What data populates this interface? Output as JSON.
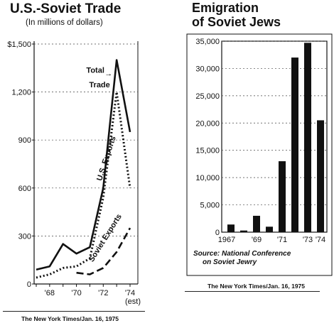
{
  "chart_data": [
    {
      "type": "line",
      "title": "U.S.-Soviet Trade",
      "subtitle": "(In millions of dollars)",
      "x": [
        1967,
        1968,
        1969,
        1970,
        1971,
        1972,
        1973,
        1974
      ],
      "x_tick_labels": [
        "'68",
        "'70",
        "'72",
        "'74"
      ],
      "x_tick_note": "(est)",
      "y_ticks": [
        0,
        300,
        600,
        900,
        1200,
        1500
      ],
      "y_tick_labels": [
        "0",
        "300",
        "600",
        "900",
        "1,200",
        "$1,500"
      ],
      "ylim": [
        0,
        1500
      ],
      "series": [
        {
          "name": "Total Trade",
          "style": "solid",
          "values": [
            90,
            110,
            250,
            190,
            230,
            600,
            1400,
            950
          ]
        },
        {
          "name": "U.S. Exports",
          "style": "dotted",
          "values": [
            40,
            60,
            100,
            110,
            160,
            540,
            1200,
            600
          ]
        },
        {
          "name": "Soviet Exports",
          "style": "dashed",
          "values": [
            null,
            null,
            null,
            70,
            60,
            100,
            200,
            350
          ]
        }
      ],
      "annotation_arrow": "→",
      "credit": "The New York Times/Jan. 16, 1975"
    },
    {
      "type": "bar",
      "title": "Emigration of Soviet Jews",
      "title_lines": [
        "Emigration",
        "of Soviet Jews"
      ],
      "categories": [
        "1967",
        "1968",
        "1969",
        "1970",
        "1971",
        "1972",
        "1973",
        "1974"
      ],
      "x_tick_labels": [
        "1967",
        "'69",
        "'71",
        "'73",
        "'74"
      ],
      "values": [
        1400,
        300,
        3000,
        1000,
        13000,
        32000,
        34700,
        20500
      ],
      "y_ticks": [
        0,
        5000,
        10000,
        15000,
        20000,
        25000,
        30000,
        35000
      ],
      "y_tick_labels": [
        "0",
        "5,000",
        "10,000",
        "15,000",
        "20,000",
        "25,000",
        "30,000",
        "35,000"
      ],
      "ylim": [
        0,
        35000
      ],
      "source": "Source: National Conference on Soviet Jewry",
      "source_lines": [
        "Source: National Conference",
        "on Soviet Jewry"
      ],
      "credit": "The New York Times/Jan. 16, 1975"
    }
  ],
  "colors": {
    "ink": "#111111",
    "background": "#ffffff"
  }
}
